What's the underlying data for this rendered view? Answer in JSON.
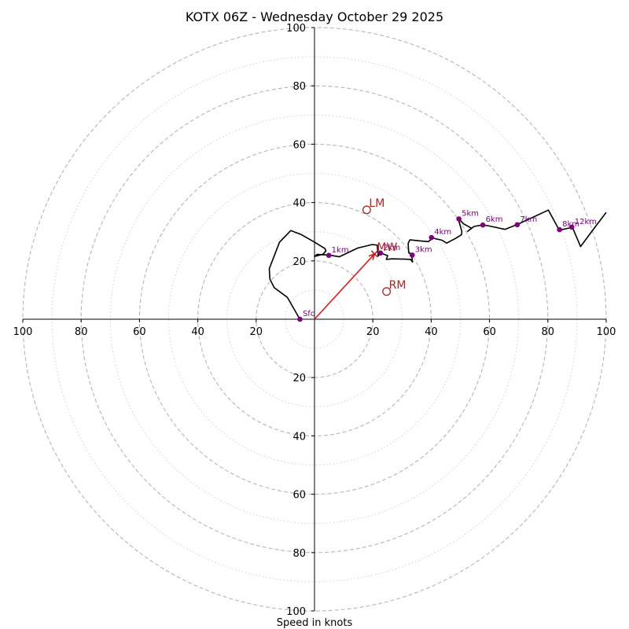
{
  "chart_data": {
    "type": "line",
    "title": "KOTX 06Z - Wednesday October 29 2025",
    "xlabel": "Speed in knots",
    "ylabel": "",
    "range": [
      -100,
      100
    ],
    "rings_major": [
      20,
      40,
      60,
      80,
      100
    ],
    "rings_minor": [
      10,
      30,
      50,
      70,
      90
    ],
    "x_ticks": [
      "100",
      "80",
      "60",
      "40",
      "20",
      "20",
      "40",
      "60",
      "80",
      "100"
    ],
    "x_tick_values": [
      -100,
      -80,
      -60,
      -40,
      -20,
      20,
      40,
      60,
      80,
      100
    ],
    "y_ticks": [
      "100",
      "80",
      "60",
      "40",
      "20",
      "20",
      "40",
      "60",
      "80",
      "100"
    ],
    "y_tick_values": [
      100,
      80,
      60,
      40,
      20,
      -20,
      -40,
      -60,
      -80,
      -100
    ],
    "trace": [
      [
        -5,
        0
      ],
      [
        -9.3,
        7.5
      ],
      [
        -13.8,
        10.8
      ],
      [
        -15.3,
        13.8
      ],
      [
        -15.5,
        17.3
      ],
      [
        -15.2,
        18.1
      ],
      [
        -12,
        26.4
      ],
      [
        -8.1,
        30.4
      ],
      [
        -4.5,
        29
      ],
      [
        -0.3,
        26.6
      ],
      [
        3.6,
        24.2
      ],
      [
        3.9,
        23.4
      ],
      [
        2.9,
        22.3
      ],
      [
        0,
        21.5
      ],
      [
        0.9,
        22.2
      ],
      [
        5.1,
        22
      ],
      [
        8.5,
        21.4
      ],
      [
        14.8,
        24.4
      ],
      [
        19.8,
        25.6
      ],
      [
        21.5,
        25.4
      ],
      [
        21.8,
        21.9
      ],
      [
        21.9,
        21.7
      ],
      [
        22.6,
        22.7
      ],
      [
        25.1,
        21.8
      ],
      [
        24.6,
        20.5
      ],
      [
        26.5,
        20.7
      ],
      [
        30.9,
        20.6
      ],
      [
        32.9,
        20.5
      ],
      [
        33.6,
        19.6
      ],
      [
        33.2,
        22.2
      ],
      [
        32.3,
        22.8
      ],
      [
        32.1,
        26
      ],
      [
        32.7,
        27.2
      ],
      [
        36.7,
        26.8
      ],
      [
        39,
        26.6
      ],
      [
        40.6,
        27.8
      ],
      [
        43.7,
        27.1
      ],
      [
        45.3,
        26.1
      ],
      [
        48.5,
        27.8
      ],
      [
        50.4,
        29
      ],
      [
        50.5,
        30.1
      ],
      [
        49.6,
        33.3
      ],
      [
        49.5,
        34.4
      ],
      [
        51.1,
        32.7
      ],
      [
        53.8,
        31.2
      ],
      [
        52.5,
        30.1
      ],
      [
        54.7,
        31.8
      ],
      [
        57.6,
        32.3
      ],
      [
        59.2,
        32.1
      ],
      [
        65.3,
        30.8
      ],
      [
        69.6,
        32.5
      ],
      [
        80.2,
        37.4
      ],
      [
        83.9,
        30.5
      ],
      [
        88.4,
        31.5
      ],
      [
        91.2,
        24.9
      ],
      [
        95.5,
        30.7
      ],
      [
        100,
        36.6
      ]
    ],
    "height_markers": [
      {
        "label": "Sfc",
        "u": -5,
        "v": 0
      },
      {
        "label": "1km",
        "u": 4.9,
        "v": 21.9
      },
      {
        "label": "2km",
        "u": 22.6,
        "v": 22.7
      },
      {
        "label": "3km",
        "u": 33.5,
        "v": 22
      },
      {
        "label": "4km",
        "u": 40.1,
        "v": 28
      },
      {
        "label": "5km",
        "u": 49.5,
        "v": 34.4
      },
      {
        "label": "6km",
        "u": 57.7,
        "v": 32.3
      },
      {
        "label": "7km",
        "u": 69.5,
        "v": 32.4
      },
      {
        "label": "8km",
        "u": 84,
        "v": 30.7
      },
      {
        "label": "12km",
        "u": 88.2,
        "v": 31.6
      }
    ],
    "storm_motion": [
      {
        "label": "LM",
        "u": 17.9,
        "v": 37.5,
        "marker": "circle-open"
      },
      {
        "label": "RM",
        "u": 24.7,
        "v": 9.5,
        "marker": "circle-open"
      },
      {
        "label": "MW",
        "u": 20.6,
        "v": 22.4,
        "marker": "x"
      }
    ],
    "mean_wind_vector": {
      "from": [
        0,
        0
      ],
      "to": [
        20.6,
        22.4
      ]
    },
    "colors": {
      "trace": "#000000",
      "markers": "#800080",
      "storm": "#b22222",
      "vector": "#e41a1c",
      "rings": "#b5b5b5",
      "axes": "#000000"
    }
  }
}
